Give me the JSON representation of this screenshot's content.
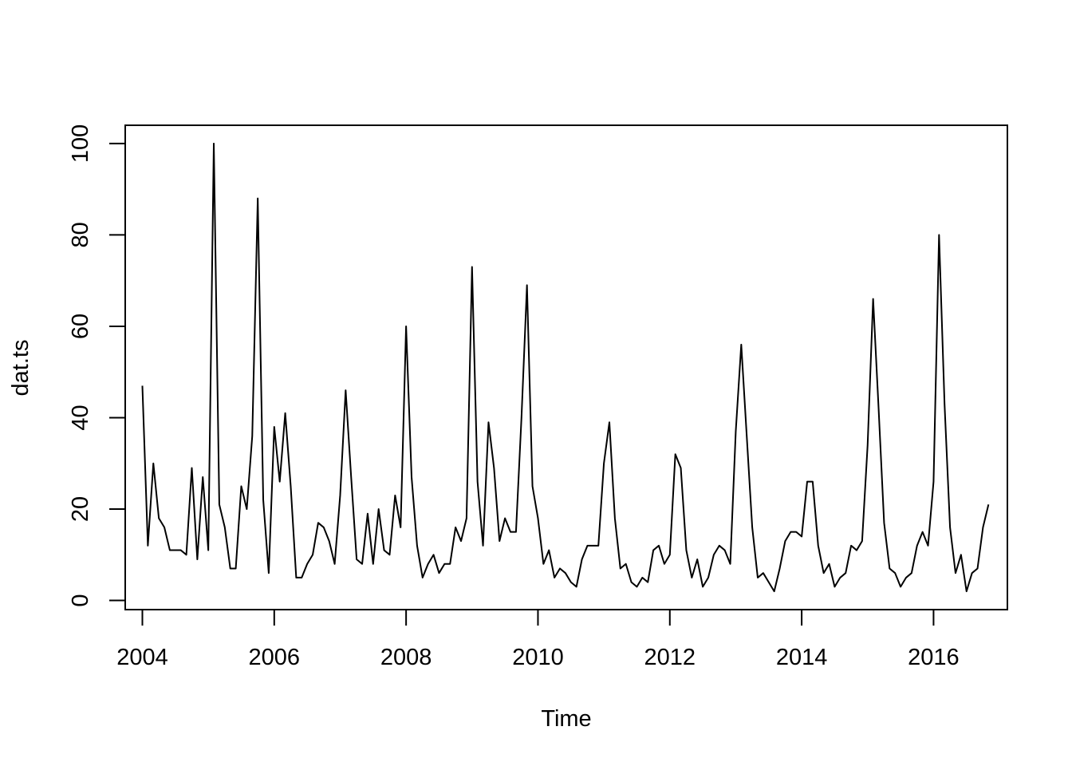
{
  "chart_data": {
    "type": "line",
    "title": "",
    "xlabel": "Time",
    "ylabel": "dat.ts",
    "xlim": [
      2003.74,
      2017.12
    ],
    "ylim": [
      -2,
      104
    ],
    "x_ticks": [
      2004,
      2006,
      2008,
      2010,
      2012,
      2014,
      2016
    ],
    "x_tick_labels": [
      "2004",
      "2006",
      "2008",
      "2010",
      "2012",
      "2014",
      "2016"
    ],
    "y_ticks": [
      0,
      20,
      40,
      60,
      80,
      100
    ],
    "y_tick_labels": [
      "0",
      "20",
      "40",
      "60",
      "80",
      "100"
    ],
    "grid": false,
    "legend": "none",
    "line_color": "#000000",
    "start": "2004-01",
    "frequency": "monthly",
    "series": [
      {
        "values": [
          47,
          12,
          30,
          18,
          16,
          11,
          11,
          11,
          10,
          29,
          9,
          27,
          11,
          100,
          21,
          16,
          7,
          7,
          25,
          20,
          36,
          88,
          22,
          6,
          38,
          26,
          41,
          25,
          5,
          5,
          8,
          10,
          17,
          16,
          13,
          8,
          23,
          46,
          27,
          9,
          8,
          19,
          8,
          20,
          11,
          10,
          23,
          16,
          60,
          27,
          12,
          5,
          8,
          10,
          6,
          8,
          8,
          16,
          13,
          18,
          73,
          26,
          12,
          39,
          29,
          13,
          18,
          15,
          15,
          40,
          69,
          25,
          18,
          8,
          11,
          5,
          7,
          6,
          4,
          3,
          9,
          12,
          12,
          12,
          30,
          39,
          18,
          7,
          8,
          4,
          3,
          5,
          4,
          11,
          12,
          8,
          10,
          32,
          29,
          11,
          5,
          9,
          3,
          5,
          10,
          12,
          11,
          8,
          37,
          56,
          36,
          16,
          5,
          6,
          4,
          2,
          7,
          13,
          15,
          15,
          14,
          26,
          26,
          12,
          6,
          8,
          3,
          5,
          6,
          12,
          11,
          13,
          34,
          66,
          42,
          17,
          7,
          6,
          3,
          5,
          6,
          12,
          15,
          12,
          26,
          80,
          43,
          16,
          6,
          10,
          2,
          6,
          7,
          16,
          21
        ]
      }
    ]
  }
}
